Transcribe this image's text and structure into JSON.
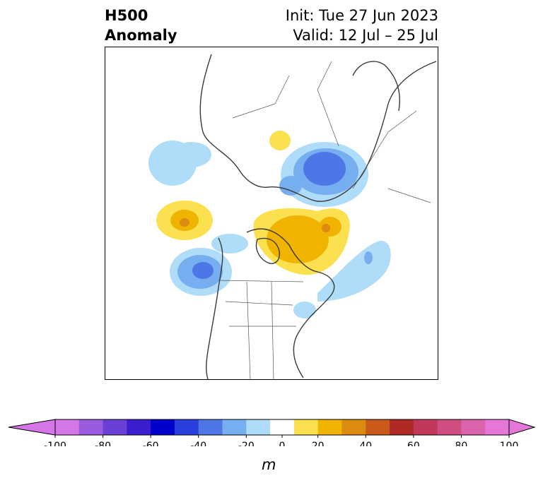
{
  "title": {
    "left_line1": "H500",
    "left_line2": "Anomaly",
    "right_line1": "Init: Tue 27 Jun 2023",
    "right_line2": "Valid: 12 Jul – 25 Jul"
  },
  "colorbar": {
    "unit": "m",
    "ticks": [
      "-100",
      "-80",
      "-60",
      "-40",
      "-20",
      "0",
      "20",
      "40",
      "60",
      "80",
      "100"
    ],
    "levels": [
      -100,
      -90,
      -80,
      -70,
      -60,
      -50,
      -40,
      -30,
      -20,
      -10,
      10,
      20,
      30,
      40,
      50,
      60,
      70,
      80,
      90,
      100
    ],
    "colors": [
      "#d475e8",
      "#9b5be0",
      "#6a3fd6",
      "#3b1fcf",
      "#0000cd",
      "#2a3fdb",
      "#4f76e6",
      "#76aef0",
      "#aedcf9",
      "#ffffff",
      "#fbe04f",
      "#f0b400",
      "#dd8a10",
      "#c95a1a",
      "#b02a25",
      "#c2385a",
      "#cf4d80",
      "#da63ac",
      "#e577d8"
    ],
    "extend_min_color": "#d475e8",
    "extend_max_color": "#e577d8"
  },
  "map": {
    "projection": "polar stereographic (North America / Arctic)"
  }
}
